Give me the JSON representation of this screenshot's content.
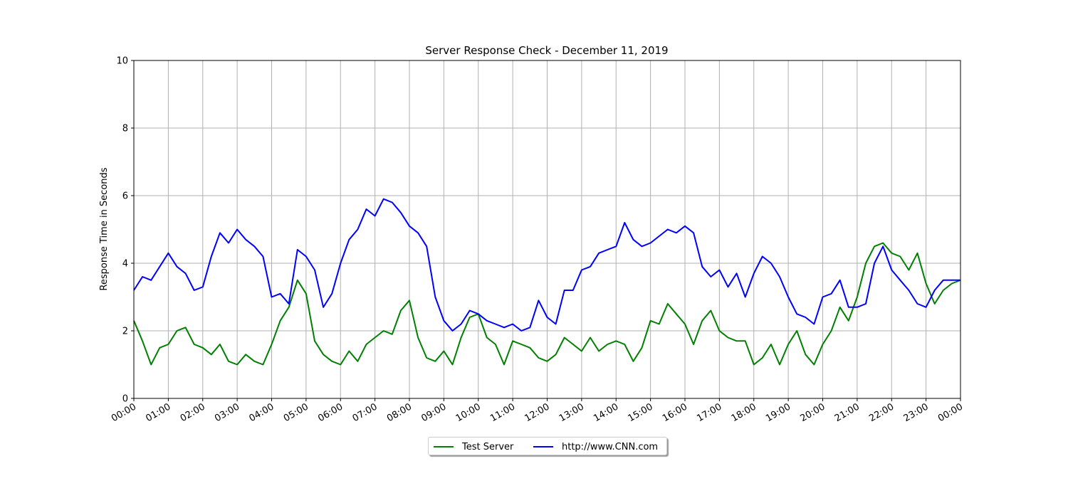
{
  "chart_data": {
    "type": "line",
    "title": "Server Response Check - December 11, 2019",
    "xlabel": "",
    "ylabel": "Response Time in Seconds",
    "ylim": [
      0,
      10
    ],
    "y_ticks": [
      0,
      2,
      4,
      6,
      8,
      10
    ],
    "xlim": [
      "00:00",
      "24:00"
    ],
    "x_tick_labels": [
      "00:00",
      "01:00",
      "02:00",
      "03:00",
      "04:00",
      "05:00",
      "06:00",
      "07:00",
      "08:00",
      "09:00",
      "10:00",
      "11:00",
      "12:00",
      "13:00",
      "14:00",
      "15:00",
      "16:00",
      "17:00",
      "18:00",
      "19:00",
      "20:00",
      "21:00",
      "22:00",
      "23:00",
      "00:00"
    ],
    "grid": true,
    "legend_position": "bottom-center",
    "x": [
      "00:00",
      "00:15",
      "00:30",
      "00:45",
      "01:00",
      "01:15",
      "01:30",
      "01:45",
      "02:00",
      "02:15",
      "02:30",
      "02:45",
      "03:00",
      "03:15",
      "03:30",
      "03:45",
      "04:00",
      "04:15",
      "04:30",
      "04:45",
      "05:00",
      "05:15",
      "05:30",
      "05:45",
      "06:00",
      "06:15",
      "06:30",
      "06:45",
      "07:00",
      "07:15",
      "07:30",
      "07:45",
      "08:00",
      "08:15",
      "08:30",
      "08:45",
      "09:00",
      "09:15",
      "09:30",
      "09:45",
      "10:00",
      "10:15",
      "10:30",
      "10:45",
      "11:00",
      "11:15",
      "11:30",
      "11:45",
      "12:00",
      "12:15",
      "12:30",
      "12:45",
      "13:00",
      "13:15",
      "13:30",
      "13:45",
      "14:00",
      "14:15",
      "14:30",
      "14:45",
      "15:00",
      "15:15",
      "15:30",
      "15:45",
      "16:00",
      "16:15",
      "16:30",
      "16:45",
      "17:00",
      "17:15",
      "17:30",
      "17:45",
      "18:00",
      "18:15",
      "18:30",
      "18:45",
      "19:00",
      "19:15",
      "19:30",
      "19:45",
      "20:00",
      "20:15",
      "20:30",
      "20:45",
      "21:00",
      "21:15",
      "21:30",
      "21:45",
      "22:00",
      "22:15",
      "22:30",
      "22:45",
      "23:00",
      "23:15",
      "23:30",
      "23:45",
      "24:00"
    ],
    "series": [
      {
        "name": "Test Server",
        "color": "#008000",
        "values": [
          2.3,
          1.7,
          1.0,
          1.5,
          1.6,
          2.0,
          2.1,
          1.6,
          1.5,
          1.3,
          1.6,
          1.1,
          1.0,
          1.3,
          1.1,
          1.0,
          1.6,
          2.3,
          2.7,
          3.5,
          3.1,
          1.7,
          1.3,
          1.1,
          1.0,
          1.4,
          1.1,
          1.6,
          1.8,
          2.0,
          1.9,
          2.6,
          2.9,
          1.8,
          1.2,
          1.1,
          1.4,
          1.0,
          1.8,
          2.4,
          2.5,
          1.8,
          1.6,
          1.0,
          1.7,
          1.6,
          1.5,
          1.2,
          1.1,
          1.3,
          1.8,
          1.6,
          1.4,
          1.8,
          1.4,
          1.6,
          1.7,
          1.6,
          1.1,
          1.5,
          2.3,
          2.2,
          2.8,
          2.5,
          2.2,
          1.6,
          2.3,
          2.6,
          2.0,
          1.8,
          1.7,
          1.7,
          1.0,
          1.2,
          1.6,
          1.0,
          1.6,
          2.0,
          1.3,
          1.0,
          1.6,
          2.0,
          2.7,
          2.3,
          3.0,
          4.0,
          4.5,
          4.6,
          4.3,
          4.2,
          3.8,
          4.3,
          3.4,
          2.8,
          3.2,
          3.4,
          3.5
        ]
      },
      {
        "name": "http://www.CNN.com",
        "color": "#0000ff",
        "values": [
          3.2,
          3.6,
          3.5,
          3.9,
          4.3,
          3.9,
          3.7,
          3.2,
          3.3,
          4.2,
          4.9,
          4.6,
          5.0,
          4.7,
          4.5,
          4.2,
          3.0,
          3.1,
          2.8,
          4.4,
          4.2,
          3.8,
          2.7,
          3.1,
          4.0,
          4.7,
          5.0,
          5.6,
          5.4,
          5.9,
          5.8,
          5.5,
          5.1,
          4.9,
          4.5,
          3.0,
          2.3,
          2.0,
          2.2,
          2.6,
          2.5,
          2.3,
          2.2,
          2.1,
          2.2,
          2.0,
          2.1,
          2.9,
          2.4,
          2.2,
          3.2,
          3.2,
          3.8,
          3.9,
          4.3,
          4.4,
          4.5,
          5.2,
          4.7,
          4.5,
          4.6,
          4.8,
          5.0,
          4.9,
          5.1,
          4.9,
          3.9,
          3.6,
          3.8,
          3.3,
          3.7,
          3.0,
          3.7,
          4.2,
          4.0,
          3.6,
          3.0,
          2.5,
          2.4,
          2.2,
          3.0,
          3.1,
          3.5,
          2.7,
          2.7,
          2.8,
          4.0,
          4.5,
          3.8,
          3.5,
          3.2,
          2.8,
          2.7,
          3.2,
          3.5,
          3.5,
          3.5
        ]
      }
    ]
  }
}
